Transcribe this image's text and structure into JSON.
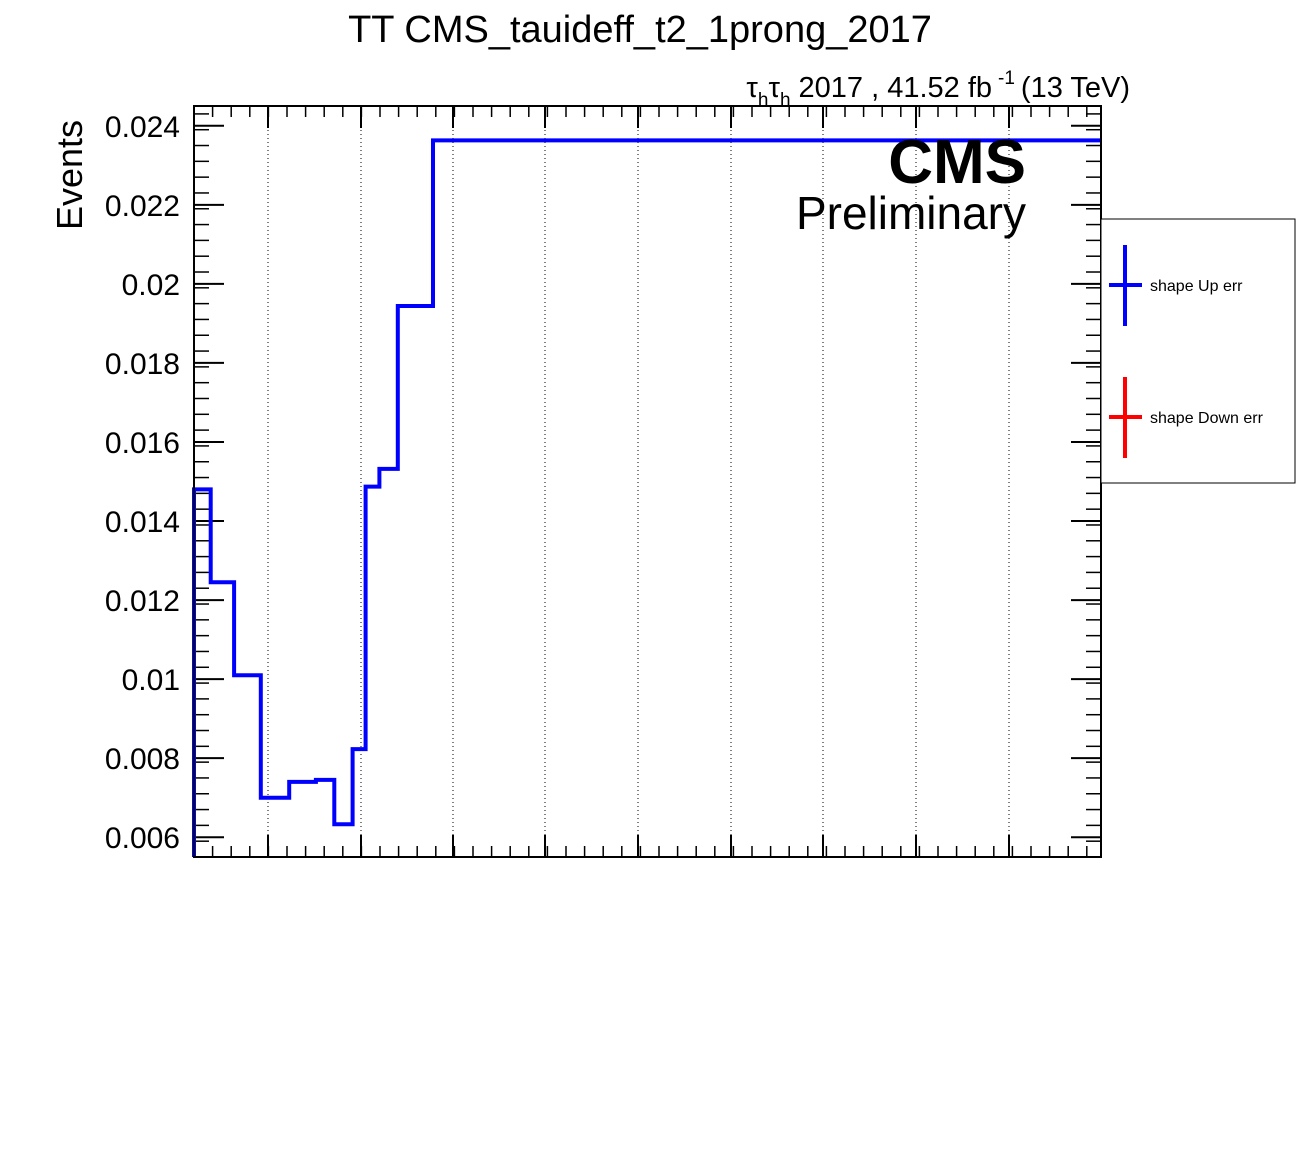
{
  "chart_data": {
    "type": "line",
    "title": "TT CMS_tauideff_t2_1prong_2017",
    "subtitle": {
      "channel_tau": "τ",
      "channel_sub": "h",
      "year_lumi": "2017 , 41.52 fb",
      "lumi_exp": "-1",
      "energy": "(13 TeV)"
    },
    "watermark": {
      "main": "CMS",
      "sub": "Preliminary"
    },
    "ylabel": "Events",
    "xlabel": "",
    "ylim": [
      0.0055,
      0.0245
    ],
    "yticks": [
      {
        "v": 0.006,
        "label": "0.006"
      },
      {
        "v": 0.008,
        "label": "0.008"
      },
      {
        "v": 0.01,
        "label": "0.01"
      },
      {
        "v": 0.012,
        "label": "0.012"
      },
      {
        "v": 0.014,
        "label": "0.014"
      },
      {
        "v": 0.016,
        "label": "0.016"
      },
      {
        "v": 0.018,
        "label": "0.018"
      },
      {
        "v": 0.02,
        "label": "0.02"
      },
      {
        "v": 0.022,
        "label": "0.022"
      },
      {
        "v": 0.024,
        "label": "0.024"
      }
    ],
    "grid": "vertical dotted",
    "legend_position": "right",
    "series": [
      {
        "name": "shape Up err",
        "color": "#0000ff",
        "drawn": true,
        "step_edges": [
          0,
          1,
          2.4,
          4,
          5.7,
          7.3,
          8.4,
          9.5,
          11,
          14,
          18,
          23,
          100
        ],
        "values": [
          0.0148,
          0.01245,
          0.0101,
          0.007,
          0.0074,
          0.00745,
          0.00633,
          0.00823,
          0.01487,
          0.01532,
          0.01944,
          0.02363
        ]
      },
      {
        "name": "shape Down err",
        "color": "#ff0000",
        "drawn": false
      }
    ]
  }
}
